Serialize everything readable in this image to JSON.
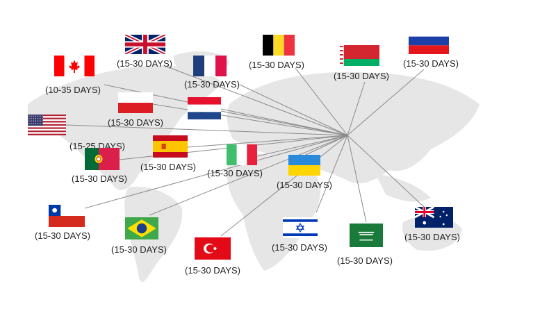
{
  "countries": [
    {
      "name": "United Kingdom",
      "flag": "uk-flag",
      "duration": "(15-30 DAYS)"
    },
    {
      "name": "Canada",
      "flag": "canada-flag",
      "duration": "(10-35 DAYS)"
    },
    {
      "name": "France",
      "flag": "france-flag",
      "duration": "(15-30 DAYS)"
    },
    {
      "name": "Belgium",
      "flag": "belgium-flag",
      "duration": "(15-30 DAYS)"
    },
    {
      "name": "Belarus",
      "flag": "belarus-flag",
      "duration": "(15-30 DAYS)"
    },
    {
      "name": "Russia",
      "flag": "russia-flag",
      "duration": "(15-30 DAYS)"
    },
    {
      "name": "Poland",
      "flag": "poland-flag",
      "duration": "(15-30 DAYS)"
    },
    {
      "name": "Netherlands",
      "flag": "netherlands-flag",
      "duration": ""
    },
    {
      "name": "United States",
      "flag": "usa-flag",
      "duration": "(15-25 DAYS)"
    },
    {
      "name": "Spain",
      "flag": "spain-flag",
      "duration": "(15-30 DAYS)"
    },
    {
      "name": "Portugal",
      "flag": "portugal-flag",
      "duration": "(15-30 DAYS)"
    },
    {
      "name": "Italy",
      "flag": "italy-flag",
      "duration": "(15-30 DAYS)"
    },
    {
      "name": "Ukraine",
      "flag": "ukraine-flag",
      "duration": "(15-30 DAYS)"
    },
    {
      "name": "Chile",
      "flag": "chile-flag",
      "duration": "(15-30 DAYS)"
    },
    {
      "name": "Brazil",
      "flag": "brazil-flag",
      "duration": "(15-30 DAYS)"
    },
    {
      "name": "Turkey",
      "flag": "turkey-flag",
      "duration": "(15-30 DAYS)"
    },
    {
      "name": "Israel",
      "flag": "israel-flag",
      "duration": "(15-30 DAYS)"
    },
    {
      "name": "Saudi Arabia",
      "flag": "saudi-arabia-flag",
      "duration": "(15-30 DAYS)"
    },
    {
      "name": "Australia",
      "flag": "australia-flag",
      "duration": "(15-30 DAYS)"
    }
  ],
  "colors": {
    "map": "#e4e4e4",
    "line": "#8a8a8a",
    "text": "#222222"
  }
}
